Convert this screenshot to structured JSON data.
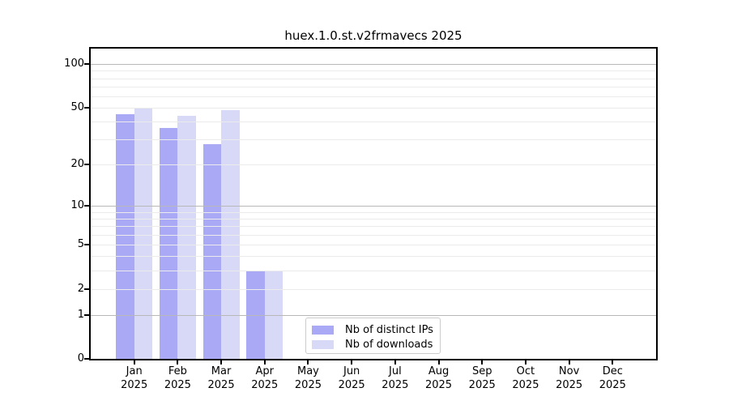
{
  "title": "huex.1.0.st.v2frmavecs 2025",
  "chart_data": {
    "type": "bar",
    "title": "huex.1.0.st.v2frmavecs 2025",
    "categories": [
      "Jan 2025",
      "Feb 2025",
      "Mar 2025",
      "Apr 2025",
      "May 2025",
      "Jun 2025",
      "Jul 2025",
      "Aug 2025",
      "Sep 2025",
      "Oct 2025",
      "Nov 2025",
      "Dec 2025"
    ],
    "series": [
      {
        "name": "Nb of distinct IPs",
        "color": "#a9a9f5",
        "values": [
          45,
          36,
          28,
          3,
          null,
          null,
          null,
          null,
          null,
          null,
          null,
          null
        ]
      },
      {
        "name": "Nb of downloads",
        "color": "#d8d8f7",
        "values": [
          50,
          44,
          48,
          3,
          null,
          null,
          null,
          null,
          null,
          null,
          null,
          null
        ]
      }
    ],
    "y_axis": {
      "scale": "log1p",
      "tick_values": [
        0,
        1,
        2,
        5,
        10,
        20,
        50,
        100
      ],
      "tick_labels": [
        "0",
        "1",
        "2",
        "5",
        "10",
        "20",
        "50",
        "100"
      ],
      "major_gridlines": [
        1,
        10,
        100
      ],
      "minor_gridlines": [
        2,
        3,
        4,
        5,
        6,
        7,
        8,
        9,
        20,
        30,
        40,
        50,
        60,
        70,
        80,
        90
      ],
      "ylim": [
        0,
        128
      ],
      "grid": true
    },
    "legend": {
      "position": "lower center",
      "entries": [
        "Nb of distinct IPs",
        "Nb of downloads"
      ]
    },
    "colors": {
      "grid_minor": "#ebebeb",
      "grid_major": "#b8b8b8",
      "spine": "#000000",
      "legend_border": "#cccccc"
    }
  }
}
